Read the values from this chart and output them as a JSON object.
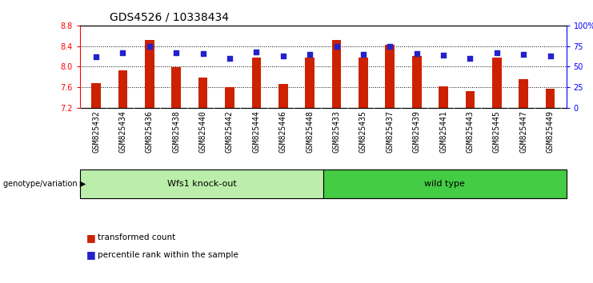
{
  "title": "GDS4526 / 10338434",
  "samples": [
    "GSM825432",
    "GSM825434",
    "GSM825436",
    "GSM825438",
    "GSM825440",
    "GSM825442",
    "GSM825444",
    "GSM825446",
    "GSM825448",
    "GSM825433",
    "GSM825435",
    "GSM825437",
    "GSM825439",
    "GSM825441",
    "GSM825443",
    "GSM825445",
    "GSM825447",
    "GSM825449"
  ],
  "transformed_count": [
    7.68,
    7.92,
    8.52,
    7.98,
    7.78,
    7.6,
    8.18,
    7.66,
    8.18,
    8.52,
    8.18,
    8.42,
    8.2,
    7.62,
    7.52,
    8.18,
    7.76,
    7.56
  ],
  "percentile_rank": [
    62,
    67,
    75,
    67,
    66,
    60,
    68,
    63,
    65,
    75,
    65,
    75,
    66,
    64,
    60,
    67,
    65,
    63
  ],
  "bar_color": "#cc2200",
  "dot_color": "#2222cc",
  "ylim_left": [
    7.2,
    8.8
  ],
  "ylim_right": [
    0,
    100
  ],
  "yticks_left": [
    7.2,
    7.6,
    8.0,
    8.4,
    8.8
  ],
  "yticks_right": [
    0,
    25,
    50,
    75,
    100
  ],
  "ytick_labels_right": [
    "0",
    "25",
    "50",
    "75",
    "100%"
  ],
  "group1_label": "Wfs1 knock-out",
  "group2_label": "wild type",
  "group1_color": "#bbeeaa",
  "group2_color": "#44cc44",
  "group1_count": 9,
  "group2_count": 9,
  "genotype_label": "genotype/variation",
  "legend_bar_label": "transformed count",
  "legend_dot_label": "percentile rank within the sample",
  "bg_color": "#ffffff",
  "plot_bg_color": "#ffffff",
  "title_fontsize": 10,
  "tick_fontsize": 7,
  "label_fontsize": 8,
  "bar_width": 0.35,
  "xtick_bg": "#dddddd"
}
